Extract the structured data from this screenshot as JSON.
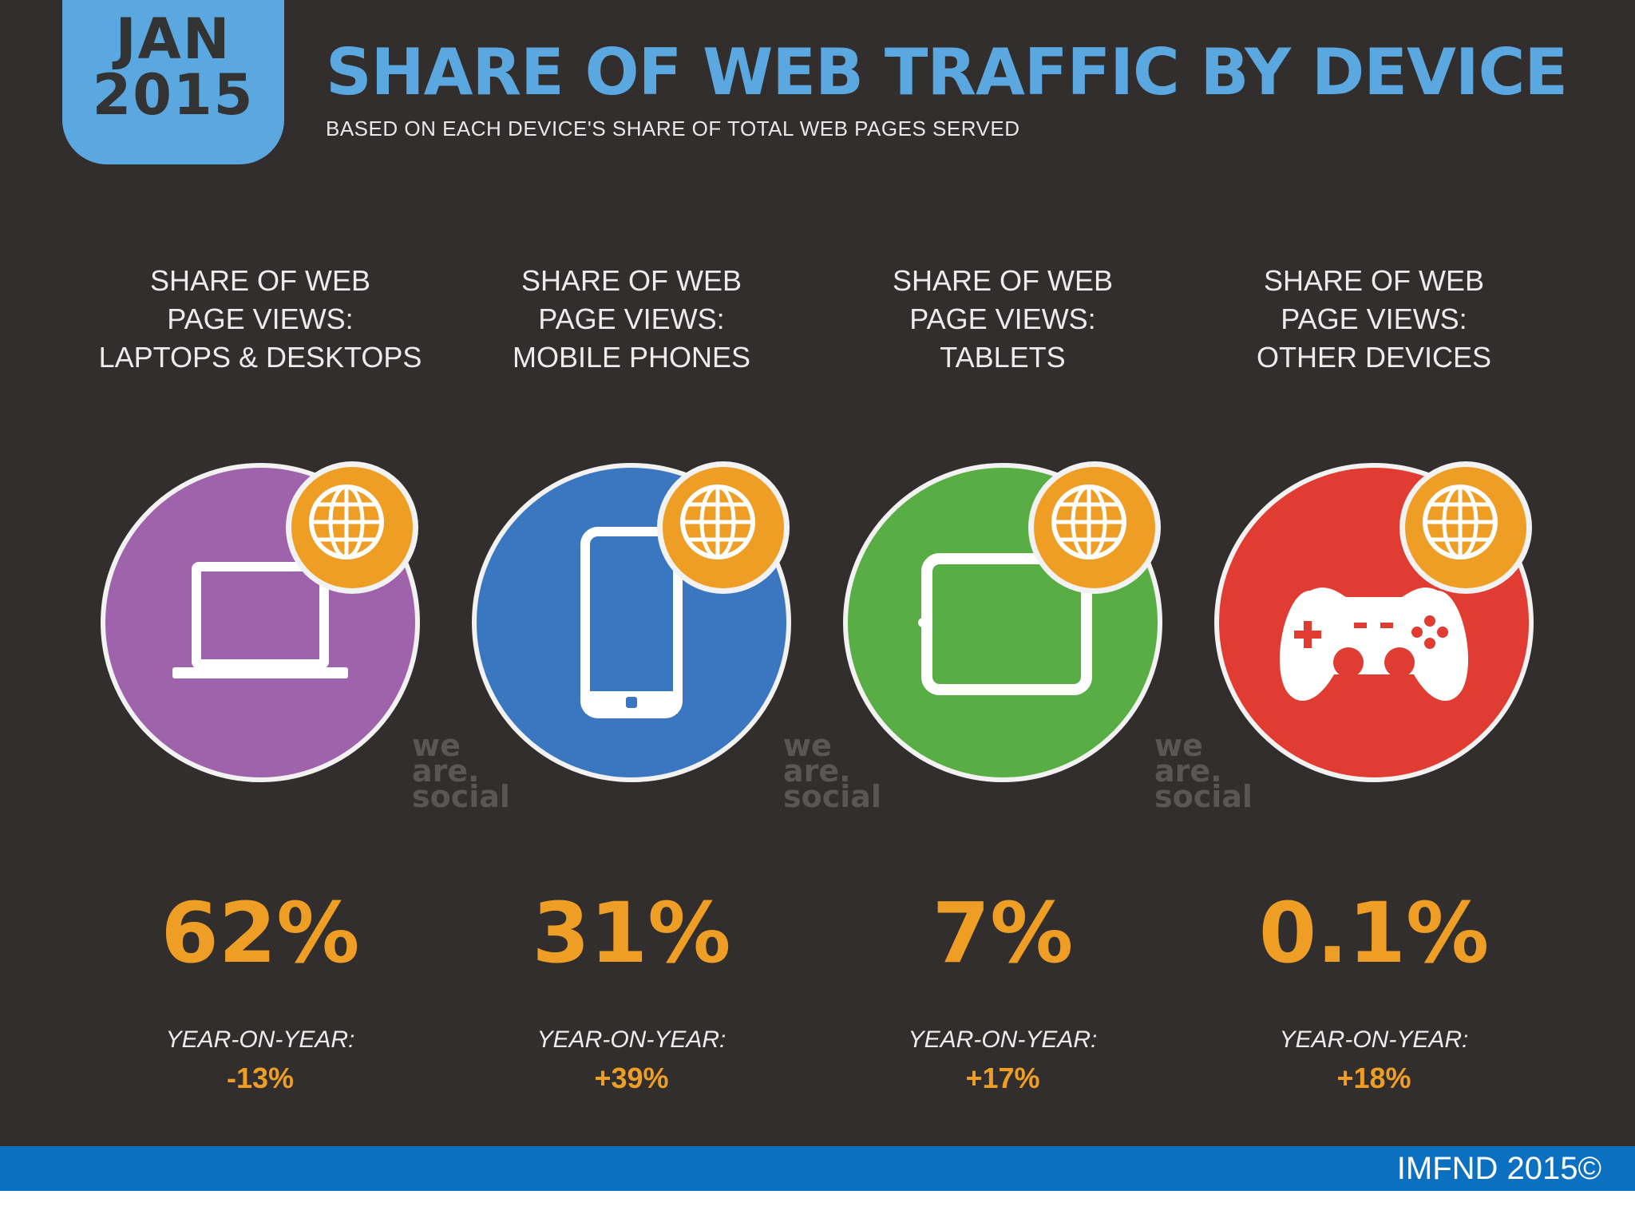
{
  "header": {
    "month": "JAN",
    "year": "2015",
    "title": "SHARE OF WEB TRAFFIC BY DEVICE",
    "subtitle": "BASED ON EACH DEVICE'S SHARE OF TOTAL WEB PAGES SERVED"
  },
  "chart_data": {
    "type": "table",
    "title": "SHARE OF WEB TRAFFIC BY DEVICE",
    "subtitle": "BASED ON EACH DEVICE'S SHARE OF TOTAL WEB PAGES SERVED",
    "categories": [
      "LAPTOPS & DESKTOPS",
      "MOBILE PHONES",
      "TABLETS",
      "OTHER DEVICES"
    ],
    "values": [
      62,
      31,
      7,
      0.1
    ],
    "yoy_change": [
      -13,
      39,
      17,
      18
    ],
    "items": [
      {
        "label_line1": "SHARE OF WEB",
        "label_line2": "PAGE VIEWS:",
        "label_line3": "LAPTOPS & DESKTOPS",
        "share": "62%",
        "yoy_label": "YEAR-ON-YEAR:",
        "yoy": "-13%",
        "color": "#9f63ab",
        "icon": "laptop-icon"
      },
      {
        "label_line1": "SHARE OF WEB",
        "label_line2": "PAGE VIEWS:",
        "label_line3": "MOBILE PHONES",
        "share": "31%",
        "yoy_label": "YEAR-ON-YEAR:",
        "yoy": "+39%",
        "color": "#3a77c0",
        "icon": "mobile-phone-icon"
      },
      {
        "label_line1": "SHARE OF WEB",
        "label_line2": "PAGE VIEWS:",
        "label_line3": "TABLETS",
        "share": "7%",
        "yoy_label": "YEAR-ON-YEAR:",
        "yoy": "+17%",
        "color": "#58ae44",
        "icon": "tablet-icon"
      },
      {
        "label_line1": "SHARE OF WEB",
        "label_line2": "PAGE VIEWS:",
        "label_line3": "OTHER DEVICES",
        "share": "0.1%",
        "yoy_label": "YEAR-ON-YEAR:",
        "yoy": "+18%",
        "color": "#e03c31",
        "icon": "game-controller-icon"
      }
    ]
  },
  "logo": {
    "line1": "we",
    "line2": "are.",
    "line3": "social"
  },
  "footer": {
    "text": "IMFND 2015©"
  },
  "colors": {
    "background": "#322e2d",
    "accent": "#5ba7df",
    "highlight": "#ee9e24",
    "footer": "#0b70c0"
  }
}
